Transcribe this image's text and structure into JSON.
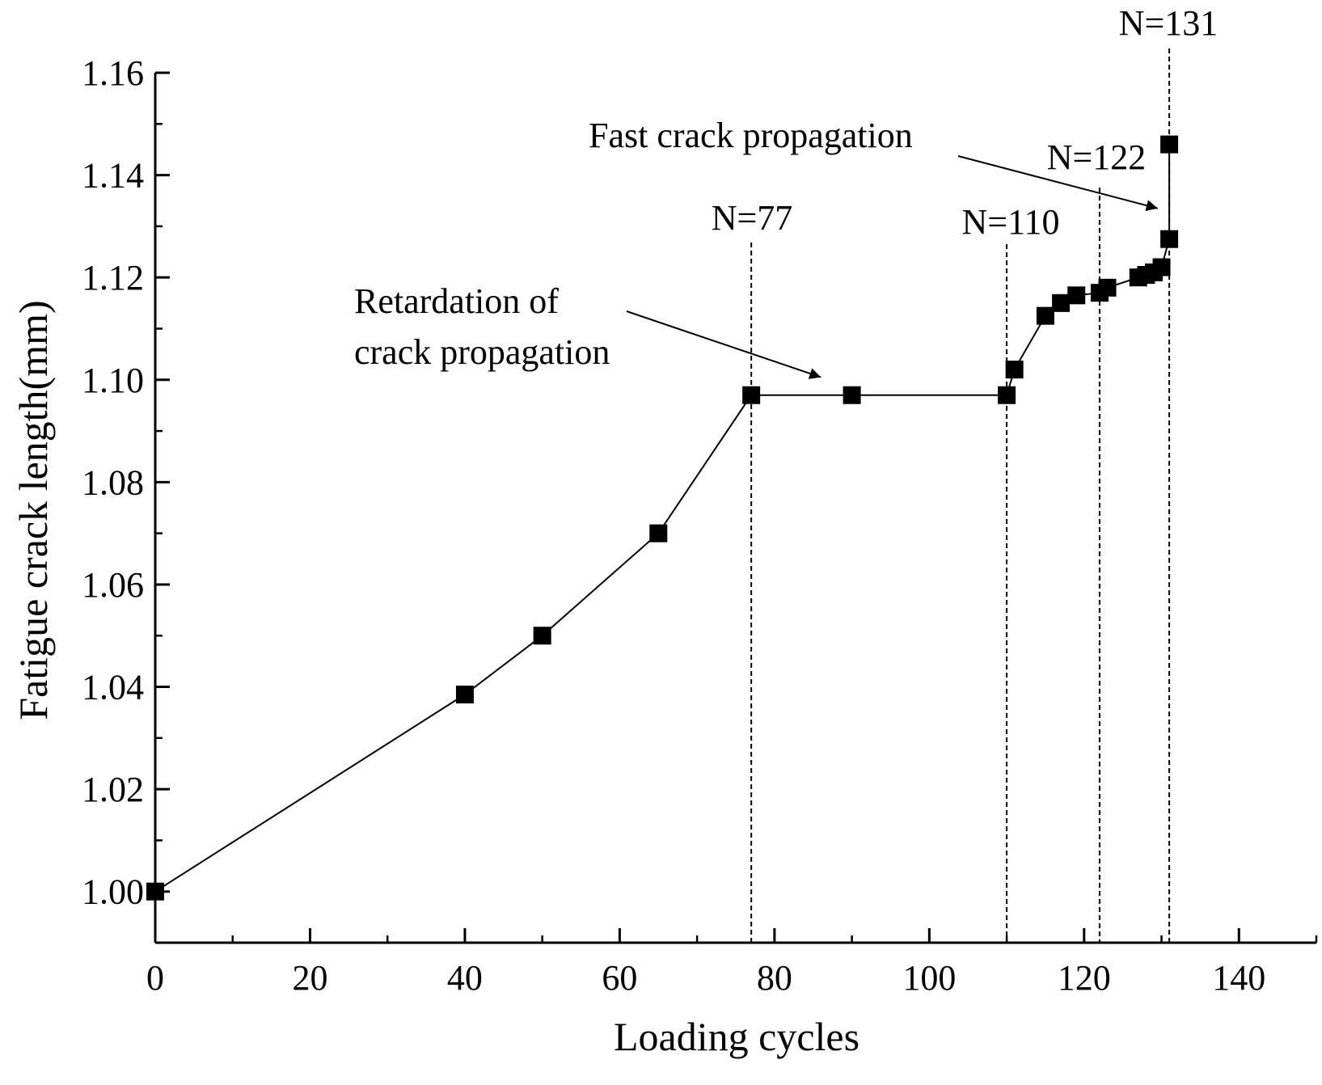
{
  "chart_data": {
    "type": "line",
    "title": "",
    "xlabel": "Loading cycles",
    "ylabel": "Fatigue crack length(mm)",
    "xlim": [
      0,
      150
    ],
    "ylim": [
      0.99,
      1.16
    ],
    "x_ticks": [
      0,
      20,
      40,
      60,
      80,
      100,
      120,
      140
    ],
    "x_tick_labels": [
      "0",
      "20",
      "40",
      "60",
      "80",
      "100",
      "120",
      "140"
    ],
    "x_minor_step": 10,
    "y_ticks": [
      1.0,
      1.02,
      1.04,
      1.06,
      1.08,
      1.1,
      1.12,
      1.14,
      1.16
    ],
    "y_tick_labels": [
      "1.00",
      "1.02",
      "1.04",
      "1.06",
      "1.08",
      "1.10",
      "1.12",
      "1.14",
      "1.16"
    ],
    "y_minor_step": 0.01,
    "grid": false,
    "legend": "none",
    "series": [
      {
        "name": "Fatigue crack length",
        "marker": "square",
        "color": "#000000",
        "x": [
          0,
          40,
          50,
          65,
          77,
          90,
          110,
          111,
          115,
          117,
          119,
          122,
          123,
          127,
          128,
          129,
          130,
          131,
          131
        ],
        "y": [
          1.0,
          1.0385,
          1.05,
          1.07,
          1.097,
          1.097,
          1.097,
          1.102,
          1.1125,
          1.115,
          1.1165,
          1.117,
          1.118,
          1.12,
          1.1205,
          1.121,
          1.122,
          1.1275,
          1.146
        ]
      }
    ],
    "reference_lines": [
      {
        "x": 77,
        "label": "N=77"
      },
      {
        "x": 110,
        "label": "N=110"
      },
      {
        "x": 122,
        "label": "N=122"
      },
      {
        "x": 131,
        "label": "N=131"
      }
    ],
    "annotations": [
      {
        "lines": [
          "Retardation of",
          "crack propagation"
        ],
        "arrow_to": [
          86,
          1.1005
        ]
      },
      {
        "lines": [
          "Fast crack propagation"
        ],
        "arrow_to": [
          129.5,
          1.1335
        ]
      }
    ]
  }
}
